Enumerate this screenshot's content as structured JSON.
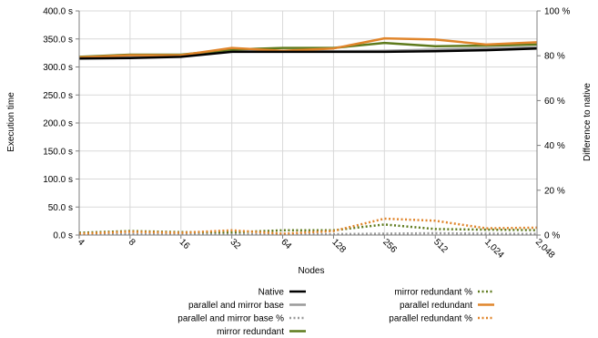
{
  "chart_data": {
    "type": "line",
    "title": "",
    "xlabel": "Nodes",
    "ylabel": "Execution time",
    "y2label": "Difference to native",
    "categories": [
      "4",
      "8",
      "16",
      "32",
      "64",
      "128",
      "256",
      "512",
      "1,024",
      "2,048"
    ],
    "ylim": [
      0,
      400
    ],
    "y_ticks": [
      "0.0 s",
      "50.0 s",
      "100.0 s",
      "150.0 s",
      "200.0 s",
      "250.0 s",
      "300.0 s",
      "350.0 s",
      "400.0 s"
    ],
    "y_tick_values": [
      0,
      50,
      100,
      150,
      200,
      250,
      300,
      350,
      400
    ],
    "y2lim": [
      0,
      100
    ],
    "y2_ticks": [
      "0 %",
      "20 %",
      "40 %",
      "60 %",
      "80 %",
      "100 %"
    ],
    "y2_tick_values": [
      0,
      20,
      40,
      60,
      80,
      100
    ],
    "grid": true,
    "legend_position": "bottom",
    "series": [
      {
        "name": "Native",
        "axis": "left",
        "style": "solid",
        "color": "#000000",
        "values": [
          315,
          316,
          318,
          327,
          327,
          327,
          327,
          328,
          330,
          333
        ]
      },
      {
        "name": "parallel and mirror base",
        "axis": "left",
        "style": "solid",
        "color": "#999999",
        "values": [
          316,
          317,
          319,
          328,
          328,
          328,
          329,
          331,
          333,
          335
        ]
      },
      {
        "name": "parallel and mirror base %",
        "axis": "right",
        "style": "dotted",
        "color": "#999999",
        "values": [
          0.3,
          0.4,
          0.3,
          0.4,
          0.4,
          0.4,
          0.6,
          0.8,
          0.6,
          0.5
        ]
      },
      {
        "name": "mirror redundant",
        "axis": "left",
        "style": "solid",
        "color": "#5e7a1c",
        "values": [
          318,
          322,
          322,
          331,
          334,
          334,
          343,
          337,
          338,
          340
        ]
      },
      {
        "name": "mirror redundant %",
        "axis": "right",
        "style": "dotted",
        "color": "#5e7a1c",
        "values": [
          1.0,
          1.8,
          1.3,
          1.2,
          2.1,
          2.1,
          4.7,
          2.7,
          2.4,
          2.2
        ]
      },
      {
        "name": "parallel redundant",
        "axis": "left",
        "style": "solid",
        "color": "#e0852b",
        "values": [
          317,
          321,
          321,
          334,
          329,
          333,
          351,
          349,
          340,
          344
        ]
      },
      {
        "name": "parallel redundant %",
        "axis": "right",
        "style": "dotted",
        "color": "#e0852b",
        "values": [
          0.6,
          1.5,
          1.0,
          2.1,
          0.6,
          1.8,
          7.3,
          6.4,
          3.0,
          3.3
        ]
      }
    ]
  }
}
